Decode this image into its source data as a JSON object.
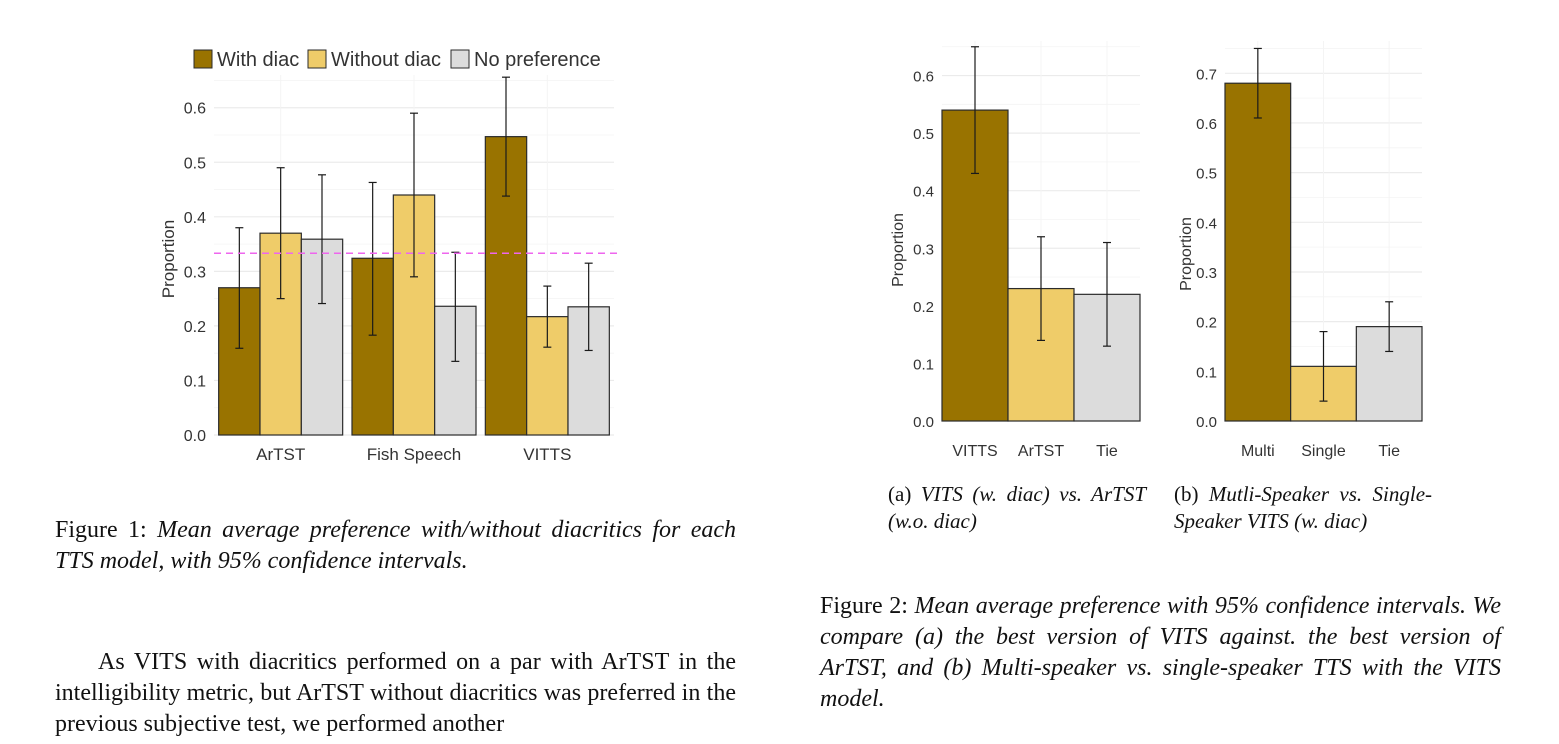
{
  "colors": {
    "with_diac": "#997300",
    "without_diac": "#efcc69",
    "no_preference": "#dcdcdc",
    "reference_line": "#ee66ee",
    "grid": "#ebebeb",
    "bar_stroke": "#2b2b2b"
  },
  "figure1": {
    "caption_label": "Figure 1:",
    "caption_text": "Mean average preference with/without diacritics for each TTS model, with 95% confidence intervals."
  },
  "figure2": {
    "caption_label": "Figure 2:",
    "caption_text": "Mean average preference with 95% confidence intervals. We compare (a) the best version of VITS against. the best version of ArTST, and (b) Multi-speaker vs. single-speaker TTS with the VITS model.",
    "sub_a": {
      "label": "(a)",
      "text": "VITS (w. diac) vs. ArTST (w.o. diac)"
    },
    "sub_b": {
      "label": "(b)",
      "text": "Mutli-Speaker vs. Single-Speaker VITS (w. diac)"
    }
  },
  "body_text": "As VITS with diacritics performed on a par with ArTST in the intelligibility metric, but ArTST without diacritics was preferred in the previous subjective test, we performed another",
  "chart_data": [
    {
      "id": "fig1",
      "type": "bar",
      "title": "",
      "xlabel": "",
      "ylabel": "Proportion",
      "categories": [
        "ArTST",
        "Fish Speech",
        "VITTS"
      ],
      "series": [
        {
          "name": "With diac",
          "color_key": "with_diac",
          "values": [
            0.27,
            0.324,
            0.547
          ],
          "ci_low": [
            0.159,
            0.183,
            0.438
          ],
          "ci_high": [
            0.38,
            0.463,
            0.656
          ]
        },
        {
          "name": "Without diac",
          "color_key": "without_diac",
          "values": [
            0.37,
            0.44,
            0.217
          ],
          "ci_low": [
            0.25,
            0.29,
            0.161
          ],
          "ci_high": [
            0.49,
            0.59,
            0.273
          ]
        },
        {
          "name": "No preference",
          "color_key": "no_preference",
          "values": [
            0.359,
            0.236,
            0.235
          ],
          "ci_low": [
            0.241,
            0.135,
            0.155
          ],
          "ci_high": [
            0.477,
            0.335,
            0.315
          ]
        }
      ],
      "reference_line": 0.3333,
      "ylim": [
        0,
        0.66
      ],
      "yticks": [
        0.0,
        0.1,
        0.2,
        0.3,
        0.4,
        0.5,
        0.6
      ],
      "grid": true,
      "legend": "top"
    },
    {
      "id": "fig2a",
      "type": "bar",
      "title": "",
      "xlabel": "",
      "ylabel": "Proportion",
      "categories": [
        "VITTS",
        "ArTST",
        "Tie"
      ],
      "values": [
        0.54,
        0.23,
        0.22
      ],
      "ci_low": [
        0.43,
        0.14,
        0.13
      ],
      "ci_high": [
        0.65,
        0.32,
        0.31
      ],
      "color_keys": [
        "with_diac",
        "without_diac",
        "no_preference"
      ],
      "ylim": [
        0,
        0.66
      ],
      "yticks": [
        0.0,
        0.1,
        0.2,
        0.3,
        0.4,
        0.5,
        0.6
      ],
      "grid": true
    },
    {
      "id": "fig2b",
      "type": "bar",
      "title": "",
      "xlabel": "",
      "ylabel": "Proportion",
      "categories": [
        "Multi",
        "Single",
        "Tie"
      ],
      "values": [
        0.68,
        0.11,
        0.19
      ],
      "ci_low": [
        0.61,
        0.04,
        0.14
      ],
      "ci_high": [
        0.75,
        0.18,
        0.24
      ],
      "color_keys": [
        "with_diac",
        "without_diac",
        "no_preference"
      ],
      "ylim": [
        0,
        0.765
      ],
      "yticks": [
        0.0,
        0.1,
        0.2,
        0.3,
        0.4,
        0.5,
        0.6,
        0.7
      ],
      "grid": true
    }
  ]
}
